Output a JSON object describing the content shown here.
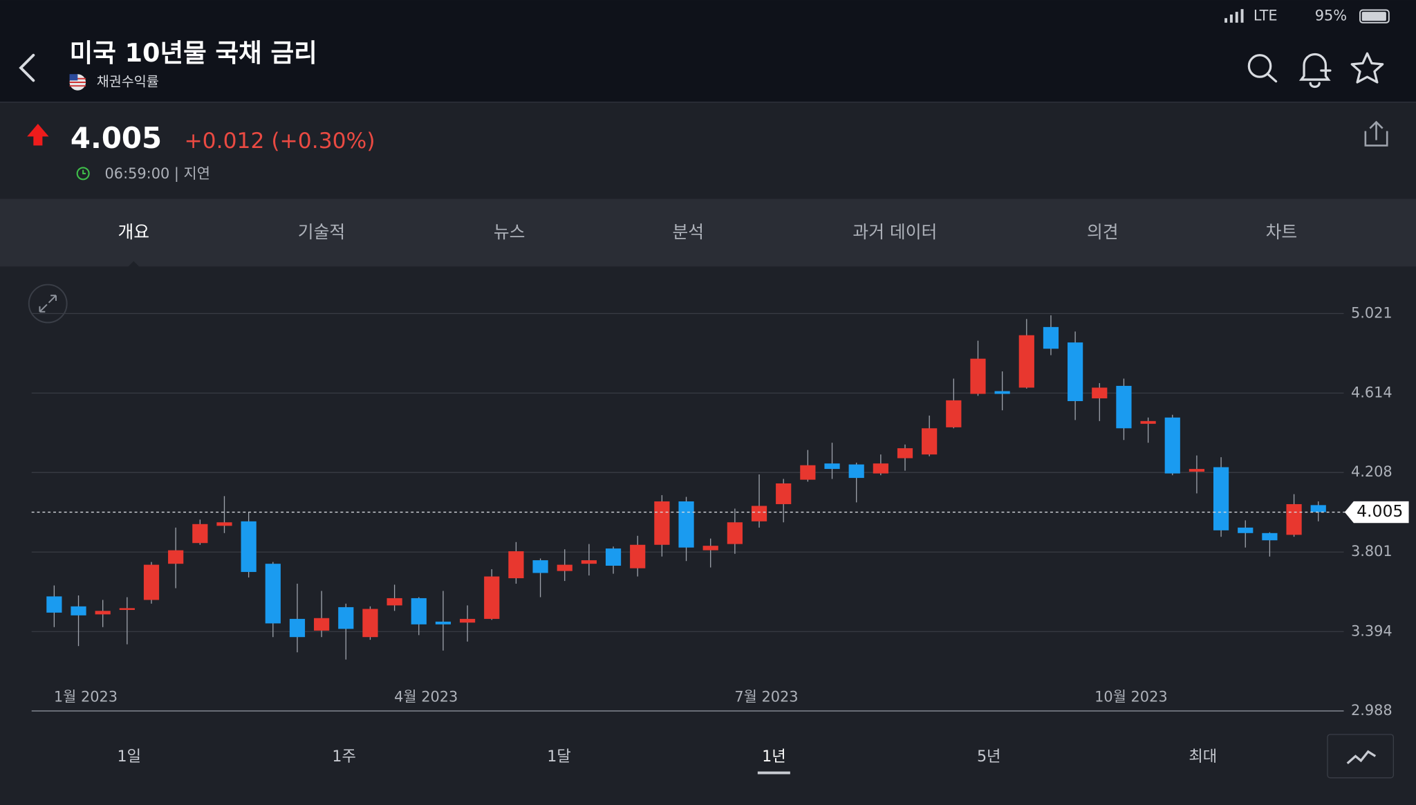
{
  "status_bar": {
    "network": "LTE",
    "battery": "95%"
  },
  "header": {
    "title": "미국 10년물 국채 금리",
    "subtitle": "채권수익률",
    "price": "4.005",
    "change": "+0.012 (+0.30%)",
    "time": "06:59:00 | 지연"
  },
  "tabs": {
    "items": [
      "개요",
      "기술적",
      "뉴스",
      "분석",
      "과거 데이터",
      "의견",
      "차트"
    ],
    "active": 0
  },
  "ranges": {
    "items": [
      "1일",
      "1주",
      "1달",
      "1년",
      "5년",
      "최대"
    ],
    "active": 3
  },
  "chart_data": {
    "type": "candlestick",
    "categories": [
      null,
      "1월 2023",
      null,
      null,
      null,
      null,
      null,
      null,
      null,
      null,
      null,
      null,
      null,
      null,
      null,
      "4월 2023",
      null,
      null,
      null,
      null,
      null,
      null,
      null,
      null,
      null,
      null,
      null,
      null,
      null,
      "7월 2023",
      null,
      null,
      null,
      null,
      null,
      null,
      null,
      null,
      null,
      null,
      null,
      null,
      null,
      null,
      "10월 2023",
      null,
      null,
      null,
      null,
      null,
      null,
      null,
      null
    ],
    "open": [
      3.574,
      3.523,
      3.482,
      3.505,
      3.556,
      3.741,
      3.847,
      3.935,
      3.958,
      3.741,
      3.459,
      3.399,
      3.519,
      3.366,
      3.528,
      3.565,
      3.445,
      3.44,
      3.459,
      3.667,
      3.759,
      3.704,
      3.741,
      3.819,
      3.718,
      3.838,
      4.06,
      3.81,
      3.842,
      3.958,
      4.046,
      4.171,
      4.254,
      4.249,
      4.203,
      4.281,
      4.3,
      4.439,
      4.61,
      4.624,
      4.642,
      4.952,
      4.873,
      4.587,
      4.651,
      4.457,
      4.489,
      4.212,
      4.235,
      3.926,
      3.898,
      3.889,
      4.041
    ],
    "high": [
      3.63,
      3.579,
      3.556,
      3.57,
      3.75,
      3.926,
      3.967,
      4.087,
      4.004,
      3.75,
      3.639,
      3.602,
      3.537,
      3.523,
      3.634,
      3.57,
      3.602,
      3.528,
      3.713,
      3.852,
      3.768,
      3.815,
      3.842,
      3.829,
      3.884,
      4.092,
      4.083,
      3.87,
      4.023,
      4.198,
      4.175,
      4.323,
      4.36,
      4.258,
      4.3,
      4.351,
      4.499,
      4.688,
      4.882,
      4.725,
      4.993,
      5.012,
      4.929,
      4.665,
      4.688,
      4.489,
      4.503,
      4.295,
      4.286,
      3.963,
      3.902,
      4.097,
      4.06
    ],
    "low": [
      3.417,
      3.32,
      3.417,
      3.329,
      3.537,
      3.616,
      3.838,
      3.898,
      3.671,
      3.366,
      3.288,
      3.366,
      3.251,
      3.352,
      3.5,
      3.376,
      3.297,
      3.343,
      3.454,
      3.639,
      3.57,
      3.653,
      3.681,
      3.69,
      3.676,
      3.778,
      3.755,
      3.722,
      3.792,
      3.926,
      3.953,
      4.161,
      4.175,
      4.055,
      4.194,
      4.217,
      4.291,
      4.434,
      4.6,
      4.526,
      4.637,
      4.808,
      4.476,
      4.471,
      4.374,
      4.36,
      4.194,
      4.101,
      3.879,
      3.824,
      3.778,
      3.879,
      3.958
    ],
    "close": [
      3.491,
      3.477,
      3.5,
      3.514,
      3.736,
      3.81,
      3.944,
      3.953,
      3.699,
      3.436,
      3.366,
      3.463,
      3.408,
      3.51,
      3.565,
      3.431,
      3.431,
      3.459,
      3.676,
      3.805,
      3.694,
      3.736,
      3.759,
      3.731,
      3.838,
      4.06,
      3.824,
      3.833,
      3.953,
      4.037,
      4.152,
      4.245,
      4.226,
      4.18,
      4.254,
      4.332,
      4.434,
      4.577,
      4.79,
      4.61,
      4.91,
      4.841,
      4.573,
      4.642,
      4.434,
      4.471,
      4.203,
      4.226,
      3.912,
      3.898,
      3.861,
      4.046,
      4.005
    ],
    "up_color": "#e8372f",
    "down_color": "#1a9bf0",
    "last_price": 4.005,
    "ylim": [
      2.988,
      5.021
    ],
    "yticks": [
      2.988,
      3.394,
      3.801,
      4.208,
      4.614,
      5.021
    ],
    "grid": true
  }
}
